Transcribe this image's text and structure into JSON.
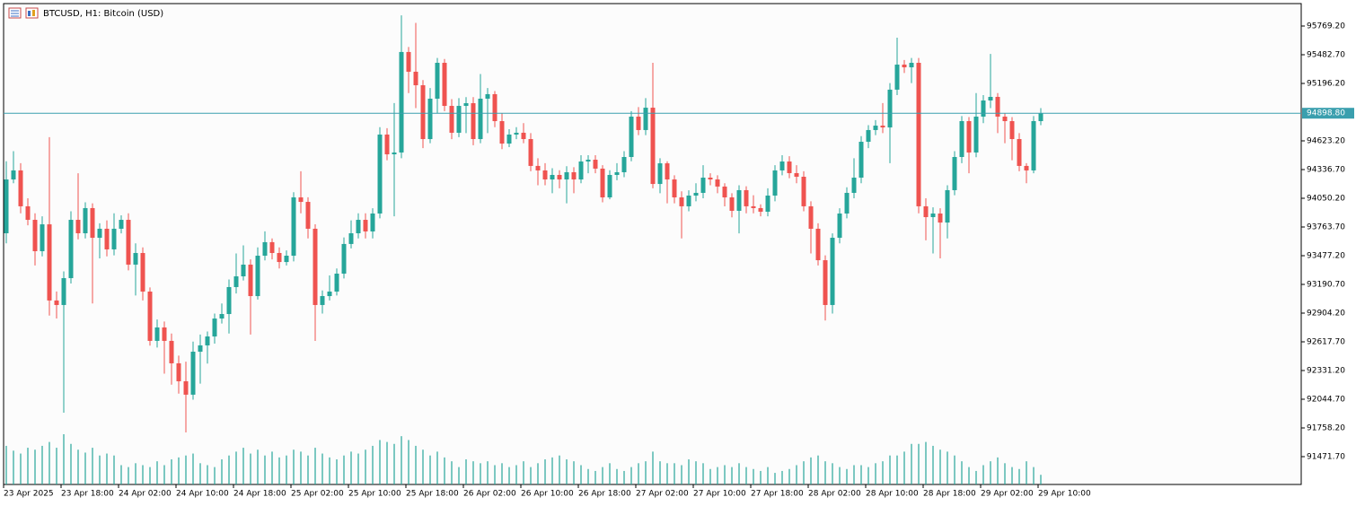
{
  "chart_data": {
    "type": "candlestick",
    "title": "BTCUSD, H1:  Bitcoin (USD)",
    "up_color": "#26a69a",
    "down_color": "#ef5350",
    "volume_color": "#26a69a",
    "price_line_color": "#3a9fae",
    "ylim": [
      91194,
      95993
    ],
    "yticks": [
      {
        "value": 95769.2,
        "label": "95769.20"
      },
      {
        "value": 95482.7,
        "label": "95482.70"
      },
      {
        "value": 95196.2,
        "label": "95196.20"
      },
      {
        "value": 94623.2,
        "label": "94623.20"
      },
      {
        "value": 94336.7,
        "label": "94336.70"
      },
      {
        "value": 94050.2,
        "label": "94050.20"
      },
      {
        "value": 93763.7,
        "label": "93763.70"
      },
      {
        "value": 93477.2,
        "label": "93477.20"
      },
      {
        "value": 93190.7,
        "label": "93190.70"
      },
      {
        "value": 92904.2,
        "label": "92904.20"
      },
      {
        "value": 92617.7,
        "label": "92617.70"
      },
      {
        "value": 92331.2,
        "label": "92331.20"
      },
      {
        "value": 92044.7,
        "label": "92044.70"
      },
      {
        "value": 91758.2,
        "label": "91758.20"
      },
      {
        "value": 91471.7,
        "label": "91471.70"
      }
    ],
    "last_price": {
      "value": 94898.8,
      "label": "94898.80"
    },
    "categories": [
      "23 Apr 2025",
      null,
      null,
      null,
      null,
      null,
      null,
      null,
      "23 Apr 18:00",
      null,
      null,
      null,
      null,
      null,
      null,
      null,
      "24 Apr 02:00",
      null,
      null,
      null,
      null,
      null,
      null,
      null,
      "24 Apr 10:00",
      null,
      null,
      null,
      null,
      null,
      null,
      null,
      "24 Apr 18:00",
      null,
      null,
      null,
      null,
      null,
      null,
      null,
      "25 Apr 02:00",
      null,
      null,
      null,
      null,
      null,
      null,
      null,
      "25 Apr 10:00",
      null,
      null,
      null,
      null,
      null,
      null,
      null,
      "25 Apr 18:00",
      null,
      null,
      null,
      null,
      null,
      null,
      null,
      "26 Apr 02:00",
      null,
      null,
      null,
      null,
      null,
      null,
      null,
      "26 Apr 10:00",
      null,
      null,
      null,
      null,
      null,
      null,
      null,
      "26 Apr 18:00",
      null,
      null,
      null,
      null,
      null,
      null,
      null,
      "27 Apr 02:00",
      null,
      null,
      null,
      null,
      null,
      null,
      null,
      "27 Apr 10:00",
      null,
      null,
      null,
      null,
      null,
      null,
      null,
      "27 Apr 18:00",
      null,
      null,
      null,
      null,
      null,
      null,
      null,
      "28 Apr 02:00",
      null,
      null,
      null,
      null,
      null,
      null,
      null,
      "28 Apr 10:00",
      null,
      null,
      null,
      null,
      null,
      null,
      null,
      "28 Apr 18:00",
      null,
      null,
      null,
      null,
      null,
      null,
      null,
      "29 Apr 02:00",
      null,
      null,
      null,
      null,
      null,
      null,
      null,
      "29 Apr 10:00"
    ],
    "open": [
      93701,
      94238,
      94328,
      93970,
      93835,
      93522,
      93790,
      93030,
      92985,
      93253,
      93835,
      93701,
      93952,
      93656,
      93746,
      93540,
      93746,
      93835,
      93388,
      93504,
      93119,
      92627,
      92761,
      92627,
      92403,
      92224,
      92090,
      92519,
      92582,
      92671,
      92850,
      92895,
      93164,
      93271,
      93388,
      93074,
      93477,
      93612,
      93504,
      93414,
      93477,
      94059,
      94014,
      93746,
      92985,
      93074,
      93119,
      93298,
      93594,
      93701,
      93835,
      93719,
      93898,
      94686,
      94489,
      94507,
      95510,
      95313,
      95178,
      94641,
      95044,
      95402,
      94972,
      94704,
      94972,
      94999,
      94641,
      95044,
      95089,
      94820,
      94596,
      94686,
      94704,
      94641,
      94373,
      94328,
      94238,
      94283,
      94238,
      94310,
      94238,
      94417,
      94435,
      94346,
      94059,
      94283,
      94310,
      94462,
      94865,
      94731,
      94954,
      94193,
      94399,
      94238,
      94059,
      93970,
      94077,
      94104,
      94256,
      94238,
      94167,
      94059,
      93925,
      94131,
      93970,
      93952,
      93916,
      94077,
      94328,
      94417,
      94301,
      94265,
      93970,
      93746,
      93432,
      92985,
      93656,
      93898,
      94104,
      94256,
      94614,
      94731,
      94775,
      94757,
      95134,
      95384,
      95357,
      95402,
      93970,
      93862,
      93898,
      93808,
      94131,
      94462,
      94820,
      94507,
      94865,
      95026,
      95062,
      94865,
      94820,
      94641,
      94373,
      94328,
      94820
    ],
    "high": [
      94420,
      94520,
      94400,
      94050,
      93900,
      93870,
      94660,
      93120,
      93320,
      93920,
      94300,
      94010,
      94000,
      93800,
      93830,
      93900,
      93880,
      93900,
      93600,
      93560,
      93160,
      92840,
      92820,
      92700,
      92480,
      92420,
      92620,
      92690,
      92720,
      92900,
      93000,
      93240,
      93500,
      93580,
      93440,
      93560,
      93720,
      93650,
      93560,
      93530,
      94110,
      94320,
      94060,
      93790,
      93130,
      93280,
      93350,
      93660,
      93830,
      93900,
      93900,
      93950,
      94760,
      94750,
      95000,
      95876,
      95560,
      95800,
      95230,
      95150,
      95450,
      95440,
      95040,
      95050,
      95060,
      95060,
      95290,
      95150,
      95120,
      94900,
      94740,
      94760,
      94800,
      94700,
      94450,
      94400,
      94350,
      94330,
      94370,
      94360,
      94480,
      94480,
      94480,
      94380,
      94330,
      94400,
      94520,
      94920,
      94960,
      95050,
      95402,
      94450,
      94420,
      94280,
      94120,
      94130,
      94200,
      94380,
      94300,
      94280,
      94200,
      94100,
      94180,
      94170,
      94080,
      93990,
      94150,
      94380,
      94480,
      94470,
      94380,
      94320,
      94020,
      93800,
      93480,
      93700,
      93950,
      94160,
      94450,
      94670,
      94780,
      94830,
      95000,
      95200,
      95653,
      95430,
      95450,
      95450,
      94050,
      93960,
      93950,
      94180,
      94520,
      94870,
      94860,
      95100,
      95080,
      95491,
      95100,
      94900,
      94860,
      94700,
      94400,
      94870,
      94950
    ],
    "low": [
      93600,
      94200,
      93900,
      93780,
      93380,
      93470,
      92880,
      92850,
      91910,
      93200,
      93640,
      93650,
      93000,
      93450,
      93470,
      93480,
      93700,
      93330,
      93080,
      93030,
      92580,
      92560,
      92300,
      92190,
      92100,
      91713,
      92040,
      92200,
      92400,
      92600,
      92800,
      92700,
      93100,
      93230,
      92690,
      93040,
      93430,
      93440,
      93350,
      93380,
      93420,
      93900,
      93650,
      92627,
      92900,
      93030,
      93080,
      93250,
      93550,
      93650,
      93650,
      93650,
      93850,
      94430,
      93870,
      94450,
      95100,
      94950,
      94550,
      94600,
      94900,
      94920,
      94640,
      94660,
      94700,
      94580,
      94600,
      94700,
      94760,
      94540,
      94560,
      94640,
      94600,
      94320,
      94180,
      94180,
      94100,
      94150,
      94000,
      94100,
      94200,
      94300,
      94300,
      94010,
      94040,
      94230,
      94260,
      94420,
      94680,
      94680,
      94150,
      94100,
      94000,
      94000,
      93650,
      93920,
      94020,
      94050,
      94180,
      94100,
      93970,
      93860,
      93700,
      93900,
      93900,
      93870,
      93870,
      94020,
      94280,
      94250,
      94200,
      93920,
      93500,
      93380,
      92830,
      92900,
      93600,
      93850,
      94050,
      94200,
      94550,
      94680,
      94700,
      94400,
      95080,
      95300,
      95200,
      93900,
      93630,
      93500,
      93450,
      93650,
      94080,
      94400,
      94300,
      94460,
      94800,
      94950,
      94700,
      94600,
      94430,
      94320,
      94200,
      94300,
      94780
    ],
    "close": [
      94238,
      94328,
      93970,
      93835,
      93522,
      93790,
      93030,
      92985,
      93253,
      93835,
      93701,
      93952,
      93656,
      93746,
      93540,
      93746,
      93835,
      93388,
      93504,
      93119,
      92627,
      92761,
      92627,
      92403,
      92224,
      92090,
      92519,
      92582,
      92671,
      92850,
      92895,
      93164,
      93271,
      93388,
      93074,
      93477,
      93612,
      93504,
      93414,
      93477,
      94059,
      94014,
      93746,
      92985,
      93074,
      93119,
      93298,
      93594,
      93701,
      93835,
      93719,
      93898,
      94686,
      94489,
      94507,
      95510,
      95313,
      95178,
      94641,
      95044,
      95402,
      94972,
      94704,
      94972,
      94999,
      94641,
      95044,
      95089,
      94820,
      94596,
      94686,
      94704,
      94641,
      94373,
      94328,
      94238,
      94283,
      94238,
      94310,
      94238,
      94417,
      94435,
      94346,
      94059,
      94283,
      94310,
      94462,
      94865,
      94731,
      94954,
      94193,
      94399,
      94238,
      94059,
      93970,
      94077,
      94104,
      94256,
      94238,
      94167,
      94059,
      93925,
      94131,
      93970,
      93952,
      93916,
      94077,
      94328,
      94417,
      94301,
      94265,
      93970,
      93746,
      93432,
      92985,
      93656,
      93898,
      94104,
      94256,
      94614,
      94731,
      94775,
      94757,
      95134,
      95384,
      95357,
      95402,
      93970,
      93862,
      93898,
      93808,
      94131,
      94462,
      94820,
      94507,
      94865,
      95026,
      95062,
      94865,
      94820,
      94641,
      94373,
      94328,
      94820,
      94898.8
    ],
    "volume": [
      40,
      35,
      32,
      38,
      36,
      40,
      44,
      38,
      52,
      42,
      36,
      33,
      38,
      30,
      32,
      30,
      20,
      18,
      22,
      20,
      18,
      24,
      20,
      26,
      28,
      30,
      32,
      22,
      20,
      18,
      26,
      30,
      34,
      38,
      32,
      36,
      30,
      34,
      28,
      30,
      36,
      34,
      30,
      38,
      32,
      28,
      26,
      30,
      34,
      32,
      36,
      40,
      46,
      44,
      42,
      50,
      46,
      40,
      36,
      30,
      34,
      28,
      24,
      18,
      26,
      24,
      22,
      24,
      20,
      22,
      18,
      20,
      24,
      18,
      22,
      26,
      28,
      30,
      26,
      24,
      20,
      16,
      14,
      18,
      22,
      16,
      14,
      18,
      22,
      24,
      34,
      24,
      22,
      22,
      20,
      26,
      24,
      22,
      16,
      18,
      20,
      18,
      22,
      18,
      16,
      14,
      18,
      12,
      14,
      16,
      20,
      24,
      28,
      30,
      24,
      22,
      18,
      16,
      20,
      20,
      18,
      22,
      24,
      30,
      30,
      34,
      42,
      42,
      44,
      40,
      36,
      34,
      30,
      24,
      18,
      14,
      20,
      24,
      28,
      22,
      18,
      16,
      24,
      18,
      10
    ]
  }
}
